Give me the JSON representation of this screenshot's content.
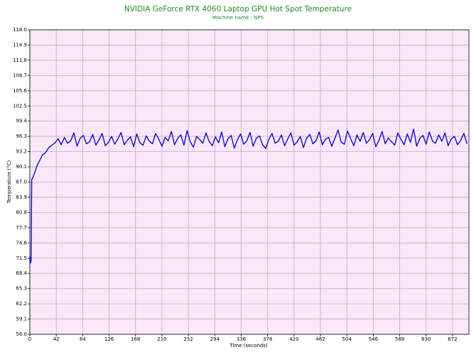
{
  "chart_data": {
    "type": "line",
    "title": "NVIDIA GeForce RTX 4060 Laptop GPU Hot Spot Temperature",
    "subtitle": "Machine name : NP5",
    "x_label": "Time (seconds)",
    "y_label": "Temperature (°C)",
    "xlim": [
      0,
      698
    ],
    "ylim": [
      56,
      118
    ],
    "xticks": [
      0,
      42,
      84,
      126,
      168,
      210,
      252,
      294,
      336,
      378,
      420,
      462,
      504,
      546,
      588,
      630,
      672
    ],
    "yticks": [
      {
        "value": 56,
        "label": "56.0"
      },
      59.1,
      62.2,
      65.3,
      68.4,
      71.5,
      74.6,
      77.7,
      80.8,
      83.9,
      {
        "value": 87,
        "label": "87.0"
      },
      90.1,
      93.2,
      96.3,
      99.4,
      102.5,
      105.6,
      108.7,
      111.8,
      114.9,
      {
        "value": 118,
        "label": "118.0"
      }
    ],
    "grid": true,
    "plot_background": "#f8e8f8",
    "grid_color": "#c9a6c9",
    "series": [
      {
        "name": "Hot Spot Temperature",
        "color": "#0000c8",
        "x": [
          0,
          1,
          2,
          3,
          5,
          8,
          12,
          16,
          20,
          25,
          30,
          35,
          40,
          45,
          50,
          55,
          60,
          65,
          70,
          75,
          80,
          85,
          90,
          95,
          100,
          105,
          110,
          115,
          120,
          125,
          130,
          135,
          140,
          145,
          150,
          155,
          160,
          165,
          170,
          175,
          180,
          185,
          190,
          195,
          200,
          205,
          210,
          215,
          220,
          225,
          230,
          235,
          240,
          245,
          250,
          255,
          260,
          265,
          270,
          275,
          280,
          285,
          290,
          295,
          300,
          305,
          310,
          315,
          320,
          325,
          330,
          335,
          340,
          345,
          350,
          355,
          360,
          365,
          370,
          375,
          380,
          385,
          390,
          395,
          400,
          405,
          410,
          415,
          420,
          425,
          430,
          435,
          440,
          445,
          450,
          455,
          460,
          465,
          470,
          475,
          480,
          485,
          490,
          495,
          500,
          505,
          510,
          515,
          520,
          525,
          530,
          535,
          540,
          545,
          550,
          555,
          560,
          565,
          570,
          575,
          580,
          585,
          590,
          595,
          600,
          605,
          610,
          615,
          620,
          625,
          630,
          635,
          640,
          645,
          650,
          655,
          660,
          665,
          670,
          675,
          680,
          685,
          690,
          695
        ],
        "values": [
          72,
          70.5,
          71,
          87.5,
          88,
          89,
          90.5,
          91.5,
          92.5,
          93,
          94,
          94.5,
          95,
          95.8,
          94.6,
          96.1,
          94.9,
          95.4,
          97.0,
          94.3,
          95.9,
          96.5,
          94.8,
          95.2,
          96.7,
          94.5,
          95.6,
          96.9,
          94.4,
          95.1,
          96.3,
          94.7,
          95.8,
          97.1,
          94.6,
          95.5,
          96.2,
          94.2,
          96.8,
          95.0,
          94.5,
          96.4,
          95.3,
          94.8,
          96.9,
          95.7,
          94.3,
          96.1,
          95.4,
          97.3,
          94.6,
          95.9,
          96.6,
          94.5,
          97.5,
          95.2,
          94.1,
          96.3,
          95.7,
          94.9,
          97.0,
          95.3,
          94.4,
          96.2,
          95.0,
          97.2,
          94.2,
          95.8,
          96.5,
          93.9,
          95.6,
          96.8,
          94.7,
          95.4,
          97.1,
          94.3,
          95.9,
          96.4,
          94.6,
          93.8,
          95.7,
          96.9,
          94.9,
          95.3,
          96.6,
          94.4,
          95.8,
          97.0,
          94.5,
          95.2,
          96.3,
          94.0,
          95.9,
          96.7,
          94.8,
          95.4,
          97.2,
          94.6,
          95.7,
          96.1,
          94.3,
          95.9,
          97.6,
          95.1,
          94.7,
          97.4,
          95.8,
          94.4,
          96.6,
          95.3,
          97.1,
          94.9,
          95.6,
          96.9,
          94.2,
          95.5,
          97.3,
          94.8,
          96.0,
          95.2,
          94.5,
          97.0,
          95.7,
          94.6,
          96.8,
          95.1,
          97.8,
          94.3,
          95.9,
          96.5,
          94.7,
          97.2,
          95.4,
          94.9,
          96.6,
          95.3,
          97.0,
          94.4,
          95.8,
          96.3,
          94.6,
          95.5,
          96.9,
          94.8
        ]
      }
    ]
  }
}
